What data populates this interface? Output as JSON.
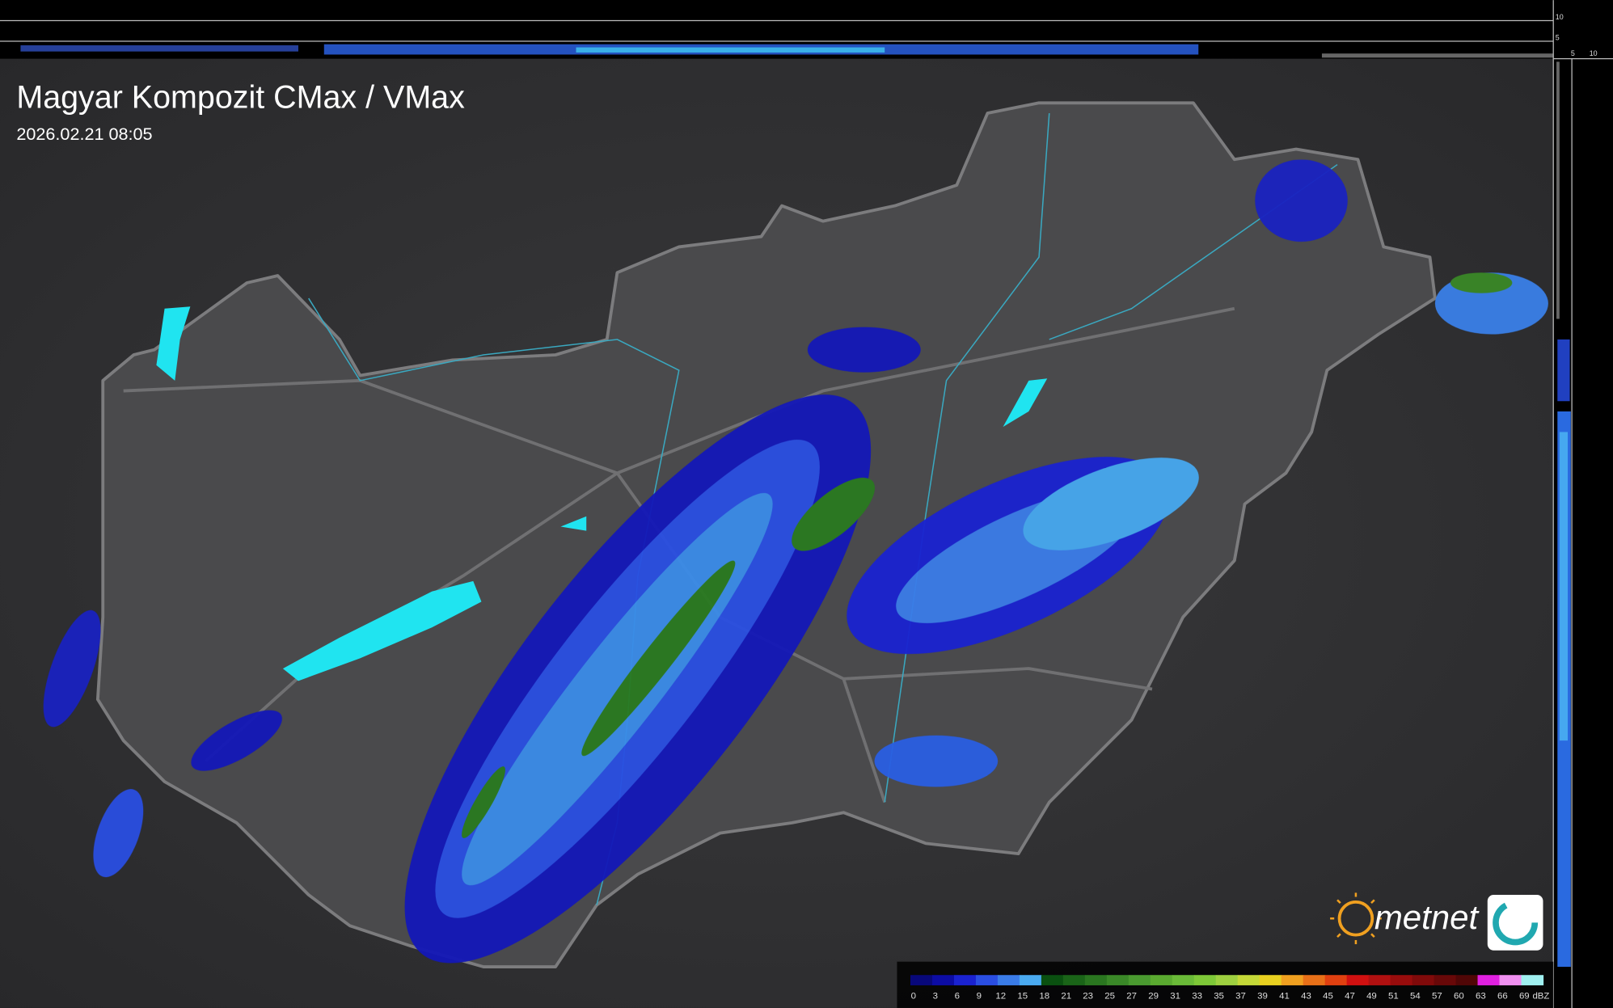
{
  "header": {
    "title": "Magyar Kompozit CMax / VMax",
    "timestamp": "2026.02.21 08:05"
  },
  "side_scale": {
    "right_labels": [
      10,
      5
    ],
    "bottom_labels": [
      5,
      10
    ]
  },
  "logo": {
    "text": "metnet"
  },
  "legend": {
    "ticks": [
      0,
      3,
      6,
      9,
      12,
      15,
      18,
      21,
      23,
      25,
      27,
      29,
      31,
      33,
      35,
      37,
      39,
      41,
      43,
      45,
      47,
      49,
      51,
      54,
      57,
      60,
      63,
      66,
      69
    ],
    "unit": "dBZ",
    "colors": [
      "#08087a",
      "#0c0ca4",
      "#1a22d0",
      "#2a4ee2",
      "#3a7ce8",
      "#4aaaf0",
      "#0a5010",
      "#1a6418",
      "#2a7620",
      "#3a8828",
      "#4a9a30",
      "#5aaa30",
      "#6aba38",
      "#7ec838",
      "#9ed040",
      "#c4d838",
      "#e8d020",
      "#f0a020",
      "#e87018",
      "#e04010",
      "#d01010",
      "#b01010",
      "#980c0c",
      "#800a0a",
      "#680808",
      "#500606",
      "#e020e0",
      "#f090f0",
      "#a0f0f0"
    ]
  }
}
